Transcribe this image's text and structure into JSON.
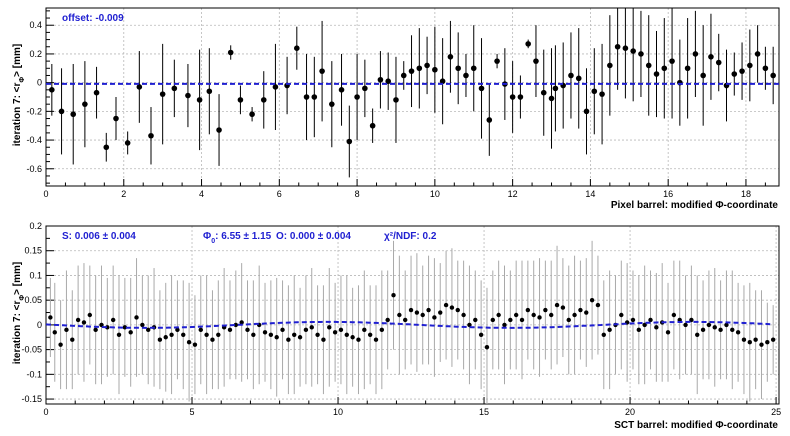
{
  "chart_data": [
    {
      "type": "scatter",
      "panel": "pixel",
      "xlabel": "Pixel barrel: modified Φ-coordinate",
      "ylabel": "iteration 7: <r_Φ> [mm]",
      "xlim": [
        0,
        18.85
      ],
      "ylim": [
        -0.72,
        0.52
      ],
      "xticks": [
        0,
        2,
        4,
        6,
        8,
        10,
        12,
        14,
        16,
        18
      ],
      "yticks": [
        -0.6,
        -0.4,
        -0.2,
        0,
        0.2,
        0.4
      ],
      "grid": true,
      "annotation": "offset:  -0.009",
      "fit_line": {
        "y": -0.009,
        "color": "#1f1fd1"
      },
      "points": {
        "x": [
          0.15,
          0.4,
          0.7,
          1.0,
          1.3,
          1.55,
          1.8,
          2.1,
          2.4,
          2.7,
          3.0,
          3.3,
          3.65,
          3.95,
          4.2,
          4.45,
          4.75,
          5.0,
          5.3,
          5.6,
          5.9,
          6.2,
          6.45,
          6.7,
          6.9,
          7.1,
          7.35,
          7.6,
          7.8,
          8.0,
          8.2,
          8.4,
          8.6,
          8.8,
          9.0,
          9.2,
          9.4,
          9.6,
          9.8,
          10.0,
          10.2,
          10.4,
          10.6,
          10.8,
          11.0,
          11.2,
          11.4,
          11.6,
          11.8,
          12.0,
          12.2,
          12.4,
          12.6,
          12.8,
          13.0,
          13.1,
          13.3,
          13.5,
          13.7,
          13.9,
          14.1,
          14.3,
          14.5,
          14.7,
          14.9,
          15.1,
          15.3,
          15.5,
          15.7,
          15.9,
          16.1,
          16.3,
          16.5,
          16.7,
          16.9,
          17.1,
          17.3,
          17.5,
          17.7,
          17.9,
          18.1,
          18.3,
          18.5,
          18.7
        ],
        "y": [
          -0.05,
          -0.2,
          -0.22,
          -0.15,
          -0.07,
          -0.45,
          -0.25,
          -0.42,
          -0.03,
          -0.37,
          -0.08,
          -0.04,
          -0.09,
          -0.12,
          -0.06,
          -0.33,
          0.21,
          -0.12,
          -0.22,
          -0.12,
          -0.03,
          -0.02,
          0.24,
          -0.1,
          -0.1,
          0.08,
          -0.15,
          -0.05,
          -0.41,
          -0.1,
          -0.04,
          -0.3,
          0.02,
          0.01,
          -0.12,
          0.05,
          0.08,
          0.1,
          0.12,
          0.09,
          0.01,
          0.18,
          0.1,
          0.05,
          0.1,
          -0.04,
          -0.26,
          0.15,
          -0.01,
          -0.1,
          -0.1,
          0.27,
          0.15,
          -0.07,
          -0.11,
          -0.04,
          -0.02,
          0.05,
          0.03,
          -0.2,
          -0.06,
          -0.08,
          0.12,
          0.25,
          0.24,
          0.22,
          0.2,
          0.12,
          0.06,
          0.1,
          0.15,
          0.0,
          0.1,
          0.2,
          0.05,
          0.18,
          0.14,
          -0.02,
          0.06,
          0.08,
          0.12,
          0.2,
          0.1,
          0.05
        ],
        "err": [
          0.18,
          0.3,
          0.35,
          0.3,
          0.18,
          0.1,
          0.15,
          0.08,
          0.25,
          0.2,
          0.35,
          0.2,
          0.22,
          0.35,
          0.3,
          0.25,
          0.05,
          0.1,
          0.05,
          0.2,
          0.3,
          0.2,
          0.15,
          0.3,
          0.28,
          0.35,
          0.3,
          0.25,
          0.25,
          0.3,
          0.2,
          0.12,
          0.2,
          0.2,
          0.3,
          0.1,
          0.25,
          0.28,
          0.2,
          0.3,
          0.3,
          0.25,
          0.25,
          0.15,
          0.3,
          0.35,
          0.25,
          0.05,
          0.25,
          0.25,
          0.15,
          0.03,
          0.25,
          0.3,
          0.35,
          0.3,
          0.3,
          0.3,
          0.35,
          0.3,
          0.3,
          0.35,
          0.35,
          0.3,
          0.35,
          0.35,
          0.3,
          0.35,
          0.3,
          0.35,
          0.4,
          0.3,
          0.35,
          0.3,
          0.35,
          0.3,
          0.2,
          0.25,
          0.15,
          0.2,
          0.25,
          0.2,
          0.15,
          0.2
        ]
      }
    },
    {
      "type": "scatter",
      "panel": "sct",
      "xlabel": "SCT barrel: modified Φ-coordinate",
      "ylabel": "iteration 7: <r_Φ> [mm]",
      "xlim": [
        0,
        25.1
      ],
      "ylim": [
        -0.16,
        0.2
      ],
      "xticks": [
        0,
        5,
        10,
        15,
        20,
        25
      ],
      "yticks": [
        -0.15,
        -0.1,
        -0.05,
        0,
        0.05,
        0.1,
        0.15,
        0.2
      ],
      "grid": true,
      "annotations": {
        "s": "S:  0.006 ± 0.004",
        "phi0_symbol": "Φ",
        "phi0_sub": "0",
        "phi0_value": ": 6.55 ± 1.15",
        "o": "O: 0.000 ± 0.004",
        "chi_label": "χ²/NDF: 0.2"
      },
      "fit_curve": {
        "S": 0.006,
        "phi0": 6.55,
        "O": 0.0,
        "period": 12.5,
        "color": "#1f1fd1"
      },
      "points": {
        "x": [
          0.15,
          0.3,
          0.5,
          0.7,
          0.9,
          1.1,
          1.3,
          1.5,
          1.7,
          1.9,
          2.1,
          2.3,
          2.5,
          2.7,
          2.9,
          3.1,
          3.3,
          3.5,
          3.7,
          3.9,
          4.1,
          4.3,
          4.5,
          4.7,
          4.9,
          5.1,
          5.3,
          5.5,
          5.7,
          5.9,
          6.1,
          6.3,
          6.5,
          6.7,
          6.9,
          7.1,
          7.3,
          7.5,
          7.7,
          7.9,
          8.1,
          8.3,
          8.5,
          8.7,
          8.9,
          9.1,
          9.3,
          9.5,
          9.7,
          9.9,
          10.1,
          10.3,
          10.5,
          10.7,
          10.9,
          11.1,
          11.3,
          11.5,
          11.7,
          11.9,
          12.1,
          12.3,
          12.5,
          12.7,
          12.9,
          13.1,
          13.3,
          13.5,
          13.7,
          13.9,
          14.1,
          14.3,
          14.5,
          14.7,
          14.9,
          15.1,
          15.3,
          15.5,
          15.7,
          15.9,
          16.1,
          16.3,
          16.5,
          16.7,
          16.9,
          17.1,
          17.3,
          17.5,
          17.7,
          17.9,
          18.1,
          18.3,
          18.5,
          18.7,
          18.9,
          19.1,
          19.3,
          19.5,
          19.7,
          19.9,
          20.1,
          20.3,
          20.5,
          20.7,
          20.9,
          21.1,
          21.3,
          21.5,
          21.7,
          21.9,
          22.1,
          22.3,
          22.5,
          22.7,
          22.9,
          23.1,
          23.3,
          23.5,
          23.7,
          23.9,
          24.1,
          24.3,
          24.5,
          24.7,
          24.9
        ],
        "y": [
          0.015,
          -0.015,
          -0.04,
          -0.01,
          -0.03,
          0.01,
          0.005,
          0.02,
          -0.01,
          0.0,
          -0.005,
          0.01,
          -0.02,
          -0.005,
          -0.015,
          0.015,
          0.0,
          -0.01,
          -0.005,
          -0.03,
          -0.025,
          -0.02,
          -0.01,
          -0.02,
          -0.035,
          -0.04,
          -0.01,
          -0.02,
          -0.03,
          -0.02,
          -0.005,
          -0.01,
          0.0,
          0.005,
          -0.01,
          -0.02,
          0.0,
          -0.015,
          -0.02,
          -0.025,
          -0.01,
          -0.03,
          -0.02,
          -0.025,
          -0.01,
          -0.005,
          -0.02,
          -0.03,
          -0.005,
          -0.015,
          -0.01,
          -0.02,
          -0.025,
          -0.03,
          -0.01,
          -0.02,
          -0.03,
          -0.01,
          0.01,
          0.06,
          0.02,
          0.01,
          0.03,
          0.025,
          0.02,
          0.03,
          0.015,
          0.025,
          0.04,
          0.035,
          0.03,
          0.02,
          0.0,
          0.01,
          -0.02,
          -0.045,
          0.01,
          0.02,
          0.0,
          0.01,
          0.02,
          0.01,
          0.03,
          0.02,
          0.015,
          0.03,
          0.02,
          0.04,
          0.035,
          0.01,
          0.02,
          0.03,
          0.025,
          0.05,
          0.04,
          -0.02,
          -0.01,
          0.0,
          0.02,
          0.005,
          0.01,
          -0.01,
          0.0,
          0.01,
          -0.005,
          0.005,
          -0.015,
          0.02,
          0.01,
          0.0,
          0.01,
          -0.02,
          -0.01,
          0.0,
          -0.005,
          -0.01,
          0.0,
          -0.01,
          -0.015,
          -0.03,
          -0.035,
          -0.03,
          -0.04,
          -0.035,
          -0.03
        ],
        "err": [
          0.08,
          0.1,
          0.09,
          0.12,
          0.1,
          0.11,
          0.12,
          0.1,
          0.11,
          0.12,
          0.1,
          0.11,
          0.12,
          0.1,
          0.11,
          0.12,
          0.1,
          0.11,
          0.12,
          0.1,
          0.11,
          0.12,
          0.1,
          0.11,
          0.12,
          0.1,
          0.11,
          0.12,
          0.1,
          0.11,
          0.12,
          0.1,
          0.11,
          0.12,
          0.1,
          0.11,
          0.12,
          0.1,
          0.11,
          0.12,
          0.1,
          0.11,
          0.12,
          0.1,
          0.11,
          0.12,
          0.1,
          0.11,
          0.12,
          0.1,
          0.11,
          0.12,
          0.1,
          0.11,
          0.12,
          0.1,
          0.11,
          0.12,
          0.1,
          0.11,
          0.12,
          0.1,
          0.11,
          0.12,
          0.1,
          0.11,
          0.12,
          0.1,
          0.11,
          0.12,
          0.1,
          0.11,
          0.12,
          0.1,
          0.11,
          0.12,
          0.1,
          0.11,
          0.12,
          0.1,
          0.11,
          0.12,
          0.1,
          0.11,
          0.12,
          0.1,
          0.11,
          0.12,
          0.1,
          0.11,
          0.12,
          0.1,
          0.11,
          0.12,
          0.1,
          0.11,
          0.12,
          0.1,
          0.11,
          0.12,
          0.1,
          0.11,
          0.12,
          0.1,
          0.11,
          0.12,
          0.1,
          0.11,
          0.12,
          0.1,
          0.11,
          0.12,
          0.1,
          0.11,
          0.12,
          0.1,
          0.11,
          0.12,
          0.1,
          0.11,
          0.12,
          0.1,
          0.11,
          0.08,
          0.07
        ]
      }
    }
  ]
}
